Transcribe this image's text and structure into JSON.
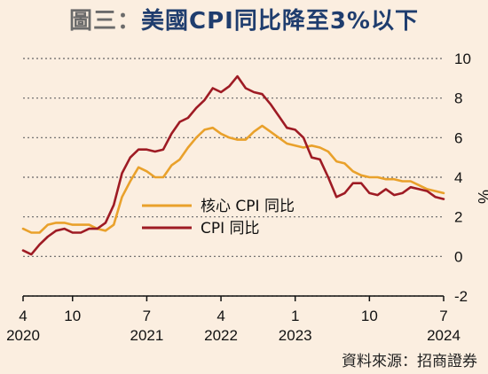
{
  "title": {
    "prefix": "圖三：",
    "main": "美國CPI同比降至3%以下"
  },
  "source": "資料來源：招商證券",
  "colors": {
    "core": "#e9a12b",
    "headline": "#9e1b24",
    "background": "#fbeee0",
    "grid": "#666666"
  },
  "chart_data": {
    "type": "line",
    "title": "美國CPI同比降至3%以下",
    "ylabel": "%",
    "ylim": [
      -2,
      10
    ],
    "yticks": [
      -2,
      0,
      2,
      4,
      6,
      8,
      10
    ],
    "grid": true,
    "legend_position": "center-left",
    "xlim": [
      "2020-04",
      "2024-07"
    ],
    "xticks": [
      {
        "month": "4",
        "year": "2020",
        "date": "2020-04"
      },
      {
        "month": "10",
        "year": "",
        "date": "2020-10"
      },
      {
        "month": "7",
        "year": "2021",
        "date": "2021-07"
      },
      {
        "month": "4",
        "year": "2022",
        "date": "2022-04"
      },
      {
        "month": "1",
        "year": "2023",
        "date": "2023-01"
      },
      {
        "month": "10",
        "year": "",
        "date": "2023-10"
      },
      {
        "month": "7",
        "year": "2024",
        "date": "2024-07"
      }
    ],
    "x": [
      "2020-04",
      "2020-05",
      "2020-06",
      "2020-07",
      "2020-08",
      "2020-09",
      "2020-10",
      "2020-11",
      "2020-12",
      "2021-01",
      "2021-02",
      "2021-03",
      "2021-04",
      "2021-05",
      "2021-06",
      "2021-07",
      "2021-08",
      "2021-09",
      "2021-10",
      "2021-11",
      "2021-12",
      "2022-01",
      "2022-02",
      "2022-03",
      "2022-04",
      "2022-05",
      "2022-06",
      "2022-07",
      "2022-08",
      "2022-09",
      "2022-10",
      "2022-11",
      "2022-12",
      "2023-01",
      "2023-02",
      "2023-03",
      "2023-04",
      "2023-05",
      "2023-06",
      "2023-07",
      "2023-08",
      "2023-09",
      "2023-10",
      "2023-11",
      "2023-12",
      "2024-01",
      "2024-02",
      "2024-03",
      "2024-04",
      "2024-05",
      "2024-06",
      "2024-07"
    ],
    "series": [
      {
        "name": "核心 CPI 同比",
        "color": "#e9a12b",
        "values": [
          1.4,
          1.2,
          1.2,
          1.6,
          1.7,
          1.7,
          1.6,
          1.6,
          1.6,
          1.4,
          1.3,
          1.6,
          3.0,
          3.8,
          4.5,
          4.3,
          4.0,
          4.0,
          4.6,
          4.9,
          5.5,
          6.0,
          6.4,
          6.5,
          6.2,
          6.0,
          5.9,
          5.9,
          6.3,
          6.6,
          6.3,
          6.0,
          5.7,
          5.6,
          5.5,
          5.6,
          5.5,
          5.3,
          4.8,
          4.7,
          4.3,
          4.1,
          4.0,
          4.0,
          3.9,
          3.9,
          3.8,
          3.8,
          3.6,
          3.4,
          3.3,
          3.2
        ]
      },
      {
        "name": "CPI 同比",
        "color": "#9e1b24",
        "values": [
          0.3,
          0.1,
          0.6,
          1.0,
          1.3,
          1.4,
          1.2,
          1.2,
          1.4,
          1.4,
          1.7,
          2.6,
          4.2,
          5.0,
          5.4,
          5.4,
          5.3,
          5.4,
          6.2,
          6.8,
          7.0,
          7.5,
          7.9,
          8.5,
          8.3,
          8.6,
          9.1,
          8.5,
          8.3,
          8.2,
          7.7,
          7.1,
          6.5,
          6.4,
          6.0,
          5.0,
          4.9,
          4.0,
          3.0,
          3.2,
          3.7,
          3.7,
          3.2,
          3.1,
          3.4,
          3.1,
          3.2,
          3.5,
          3.4,
          3.3,
          3.0,
          2.9
        ]
      }
    ]
  }
}
